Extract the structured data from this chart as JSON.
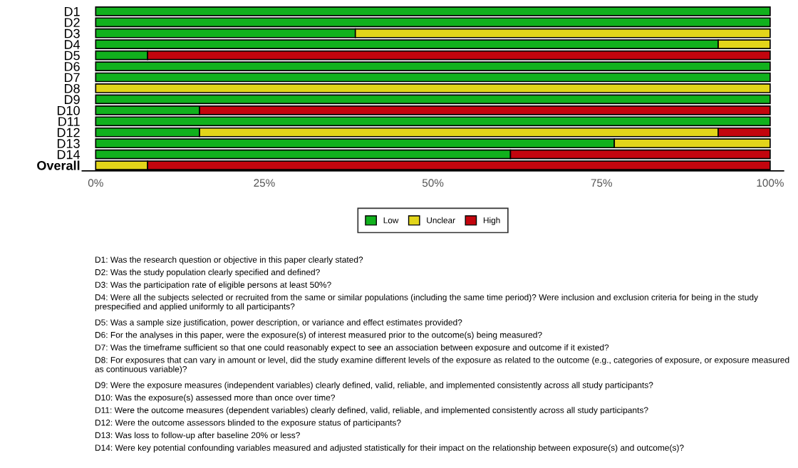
{
  "chart_data": {
    "type": "bar",
    "orientation": "horizontal",
    "stacked": true,
    "categories": [
      "D1",
      "D2",
      "D3",
      "D4",
      "D5",
      "D6",
      "D7",
      "D8",
      "D9",
      "D10",
      "D11",
      "D12",
      "D13",
      "D14",
      "Overall"
    ],
    "series": [
      {
        "name": "Low",
        "color": "#11b11d",
        "values": [
          100,
          100,
          38.5,
          92.3,
          7.7,
          100,
          100,
          0,
          100,
          15.4,
          100,
          15.4,
          76.9,
          61.5,
          0
        ]
      },
      {
        "name": "Unclear",
        "color": "#e2d51a",
        "values": [
          0,
          0,
          61.5,
          7.7,
          0,
          0,
          0,
          100,
          0,
          0,
          0,
          76.9,
          23.1,
          0,
          7.7
        ]
      },
      {
        "name": "High",
        "color": "#c3050e",
        "values": [
          0,
          0,
          0,
          0,
          92.3,
          0,
          0,
          0,
          0,
          84.6,
          0,
          7.7,
          0,
          38.5,
          92.3
        ]
      }
    ],
    "xlim": [
      -2,
      102
    ],
    "xticks": [
      {
        "value": 0,
        "label": "0%"
      },
      {
        "value": 25,
        "label": "25%"
      },
      {
        "value": 50,
        "label": "50%"
      },
      {
        "value": 75,
        "label": "75%"
      },
      {
        "value": 100,
        "label": "100%"
      }
    ],
    "legend": "bottom",
    "grid": false,
    "annotations": [
      "D1: Was the research question or objective in this paper clearly stated?",
      "D2: Was the study population clearly specified and defined?",
      "D3: Was the participation rate of eligible persons at least 50%?",
      "D4: Were all the subjects selected or recruited from the same or similar populations (including the same time period)? Were inclusion and exclusion criteria for being in the study prespecified and applied uniformly to all participants?",
      "D5: Was a sample size justification, power description, or variance and effect estimates provided?",
      "D6: For the analyses in this paper, were the exposure(s) of interest measured prior to the outcome(s) being measured?",
      "D7: Was the timeframe sufficient so that one could reasonably expect to see an association between exposure and outcome if it existed?",
      "D8: For exposures that can vary in amount or level, did the study examine different levels of the exposure as related to the outcome (e.g., categories of exposure, or exposure measured as continuous variable)?",
      "D9: Were the exposure measures (independent variables) clearly defined, valid, reliable, and implemented consistently across all study participants?",
      "D10: Was the exposure(s) assessed more than once over time?",
      "D11: Were the outcome measures (dependent variables) clearly defined, valid, reliable, and implemented consistently across all study participants?",
      "D12: Were the outcome assessors blinded to the exposure status of participants?",
      "D13: Was loss to follow-up after baseline 20% or less?",
      "D14: Were key potential confounding variables measured and adjusted statistically for their impact on the relationship between exposure(s) and outcome(s)?"
    ]
  }
}
